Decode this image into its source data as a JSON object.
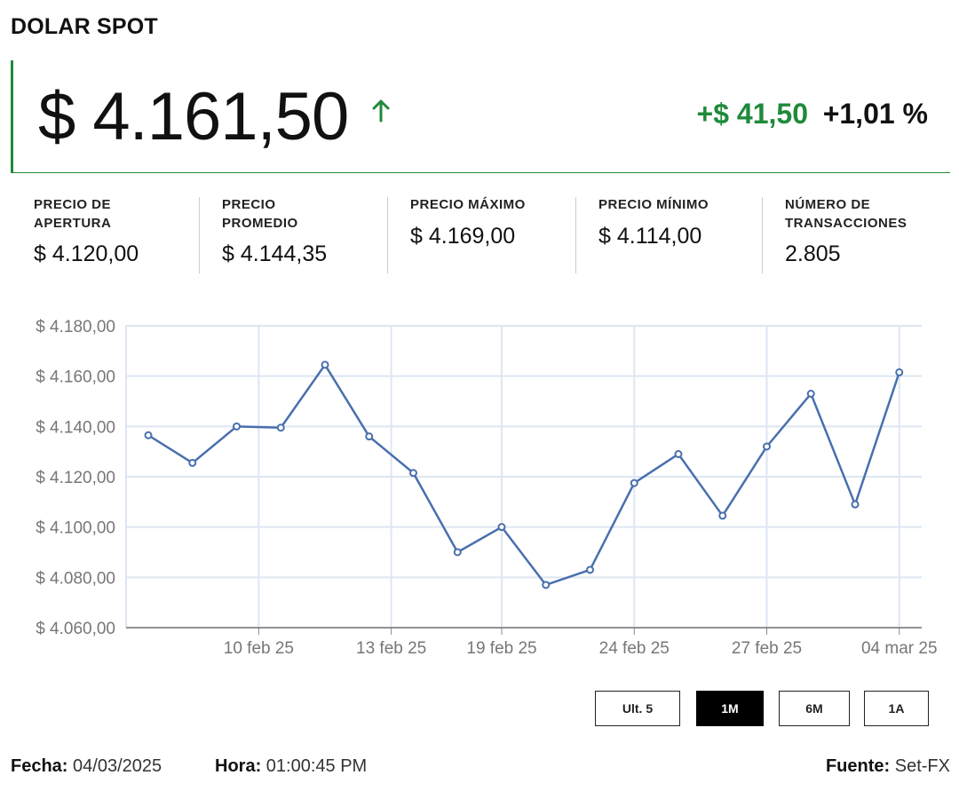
{
  "header": {
    "title": "DOLAR SPOT",
    "price": "$ 4.161,50",
    "change_abs": "+$ 41,50",
    "change_pct": "+1,01 %",
    "trend_icon": "arrow-up-icon",
    "colors": {
      "up": "#1f8a3b",
      "line": "#4a6fae",
      "grid": "#dde6f2"
    }
  },
  "stats": [
    {
      "label_line1": "PRECIO DE",
      "label_line2": "APERTURA",
      "value": "$ 4.120,00"
    },
    {
      "label_line1": "PRECIO",
      "label_line2": "PROMEDIO",
      "value": "$ 4.144,35"
    },
    {
      "label_line1": "PRECIO MÁXIMO",
      "label_line2": "",
      "value": "$ 4.169,00"
    },
    {
      "label_line1": "PRECIO MÍNIMO",
      "label_line2": "",
      "value": "$ 4.114,00"
    },
    {
      "label_line1": "NÚMERO DE",
      "label_line2": "TRANSACCIONES",
      "value": "2.805"
    }
  ],
  "chart_data": {
    "type": "line",
    "title": "",
    "xlabel": "",
    "ylabel": "",
    "ylim": [
      4060,
      4180
    ],
    "y_ticks": [
      4060,
      4080,
      4100,
      4120,
      4140,
      4160,
      4180
    ],
    "y_tick_labels": [
      "$ 4.060,00",
      "$ 4.080,00",
      "$ 4.100,00",
      "$ 4.120,00",
      "$ 4.140,00",
      "$ 4.160,00",
      "$ 4.180,00"
    ],
    "x_tick_labels": [
      "10 feb 25",
      "13 feb 25",
      "19 feb 25",
      "24 feb 25",
      "27 feb 25",
      "04 mar 25"
    ],
    "x_tick_index": [
      2.5,
      5.5,
      8,
      11,
      14,
      17
    ],
    "grid": true,
    "values": [
      4136.5,
      4125.5,
      4140.0,
      4139.5,
      4164.5,
      4136.0,
      4121.5,
      4090.0,
      4100.0,
      4077.0,
      4083.0,
      4117.5,
      4129.0,
      4104.5,
      4132.0,
      4153.0,
      4109.0,
      4161.5
    ]
  },
  "ranges": {
    "buttons": [
      "Ult. 5",
      "1M",
      "6M",
      "1A"
    ],
    "active": "1M"
  },
  "footer": {
    "fecha_label": "Fecha:",
    "fecha_value": "04/03/2025",
    "hora_label": "Hora:",
    "hora_value": "01:00:45 PM",
    "fuente_label": "Fuente:",
    "fuente_value": "Set-FX"
  }
}
